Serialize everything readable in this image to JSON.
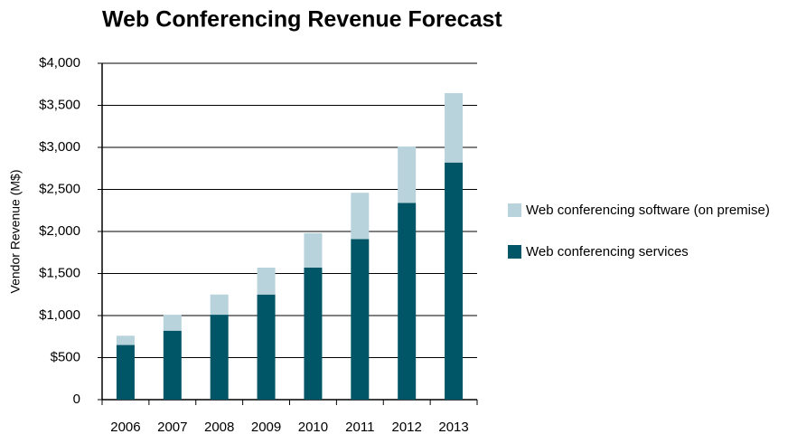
{
  "chart_data": {
    "type": "stacked_bar",
    "title": "Web Conferencing Revenue Forecast",
    "y_label": "Vendor Revenue (M$)",
    "categories": [
      "2006",
      "2007",
      "2008",
      "2009",
      "2010",
      "2011",
      "2012",
      "2013"
    ],
    "series": [
      {
        "name": "Web conferencing services",
        "color": "#005566",
        "values": [
          650,
          820,
          1010,
          1250,
          1570,
          1910,
          2340,
          2820
        ]
      },
      {
        "name": "Web conferencing software (on premise)",
        "color": "#b8d3dc",
        "values": [
          110,
          190,
          240,
          320,
          410,
          550,
          670,
          825
        ]
      }
    ],
    "ylim": [
      0,
      4000
    ],
    "yticks": [
      0,
      {
        "value": 500,
        "label": "$500"
      },
      {
        "value": 1000,
        "label": "$1,000"
      },
      {
        "value": 1500,
        "label": "$1,500"
      },
      {
        "value": 2000,
        "label": "$2,000"
      },
      {
        "value": 2500,
        "label": "$2,500"
      },
      {
        "value": 3000,
        "label": "$3,000"
      },
      {
        "value": 3500,
        "label": "$3,500"
      },
      {
        "value": 4000,
        "label": "$4,000"
      }
    ],
    "grid": true,
    "legend": "right"
  }
}
